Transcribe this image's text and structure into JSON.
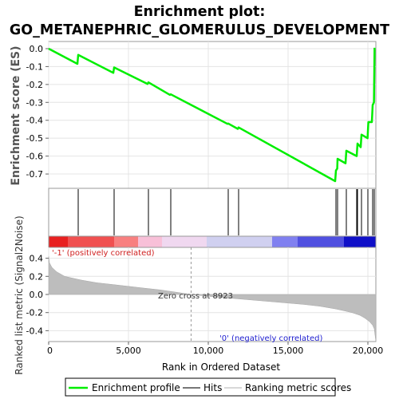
{
  "title_line1": "Enrichment plot:",
  "title_line2": "GO_METANEPHRIC_GLOMERULUS_DEVELOPMENT",
  "chart_data": [
    {
      "type": "line",
      "ylabel": "Enrichment score (ES)",
      "ylim": [
        -0.78,
        0.04
      ],
      "yticks": [
        0.0,
        -0.1,
        -0.2,
        -0.3,
        -0.4,
        -0.5,
        -0.6,
        -0.7
      ],
      "ytick_labels": [
        "0.0",
        "-0.1",
        "-0.2",
        "-0.3",
        "-0.4",
        "-0.5",
        "-0.6",
        "-0.7"
      ],
      "series": [
        {
          "name": "Enrichment profile",
          "color": "#00ee00",
          "x": [
            0,
            1800,
            1850,
            4050,
            4100,
            6200,
            6250,
            7600,
            7650,
            11200,
            11250,
            11850,
            11900,
            17950,
            18000,
            18080,
            18100,
            18600,
            18650,
            19300,
            19350,
            19550,
            19600,
            19980,
            20030,
            20250,
            20300,
            20380,
            20420
          ],
          "y": [
            0.0,
            -0.085,
            -0.035,
            -0.135,
            -0.105,
            -0.197,
            -0.188,
            -0.258,
            -0.255,
            -0.42,
            -0.418,
            -0.448,
            -0.44,
            -0.74,
            -0.68,
            -0.67,
            -0.615,
            -0.64,
            -0.57,
            -0.6,
            -0.53,
            -0.55,
            -0.48,
            -0.5,
            -0.41,
            -0.41,
            -0.315,
            -0.3,
            0.005
          ]
        }
      ]
    },
    {
      "type": "scatter",
      "name": "Hits",
      "hit_positions": [
        1850,
        4100,
        6250,
        7650,
        11250,
        11900,
        18000,
        18100,
        18650,
        19300,
        19350,
        19600,
        20000,
        20300,
        20400
      ]
    },
    {
      "type": "heatmap",
      "gradient_colors": [
        "#e82020",
        "#f05050",
        "#f88080",
        "#f8c0d8",
        "#f0d8f0",
        "#d0d0f0",
        "#8080f0",
        "#5050e0",
        "#1010c8"
      ],
      "gradient_stops_x": [
        0,
        1200,
        4100,
        5600,
        7100,
        9900,
        14000,
        15600,
        18500,
        20500
      ]
    },
    {
      "type": "area",
      "ylabel": "Ranked list metric (Signal2Noise)",
      "xlabel": "Rank in Ordered Dataset",
      "xlim": [
        0,
        20500
      ],
      "ylim": [
        -0.52,
        0.52
      ],
      "xticks": [
        0,
        5000,
        10000,
        15000,
        20000
      ],
      "xtick_labels": [
        "0",
        "5,000",
        "10,000",
        "15,000",
        "20,000"
      ],
      "yticks": [
        0.4,
        0.2,
        0.0,
        -0.2,
        -0.4
      ],
      "ytick_labels": [
        "0.4",
        "0.2",
        "0.0",
        "-0.2",
        "-0.4"
      ],
      "x": [
        0,
        50,
        200,
        500,
        1000,
        2000,
        3000,
        4000,
        5000,
        6000,
        7000,
        8000,
        8923,
        10000,
        11000,
        12000,
        13000,
        14000,
        15000,
        16000,
        17000,
        18000,
        18500,
        19000,
        19500,
        19800,
        20100,
        20300,
        20400,
        20450,
        20500
      ],
      "y": [
        0.42,
        0.35,
        0.3,
        0.25,
        0.2,
        0.16,
        0.13,
        0.11,
        0.09,
        0.07,
        0.05,
        0.025,
        0.0,
        -0.02,
        -0.035,
        -0.05,
        -0.065,
        -0.08,
        -0.095,
        -0.11,
        -0.13,
        -0.16,
        -0.18,
        -0.2,
        -0.23,
        -0.26,
        -0.3,
        -0.34,
        -0.38,
        -0.45,
        -0.52
      ],
      "zero_cross": 8923,
      "annotations": {
        "positive": "'-1' (positively correlated)",
        "zero": "Zero cross at 8923",
        "negative": "'0' (negatively correlated)"
      }
    }
  ],
  "legend": {
    "items": [
      {
        "label": "Enrichment profile",
        "color": "#00ee00"
      },
      {
        "label": "Hits",
        "color": "#777777"
      },
      {
        "label": "Ranking metric scores",
        "color": "#d8d8d8"
      }
    ]
  }
}
